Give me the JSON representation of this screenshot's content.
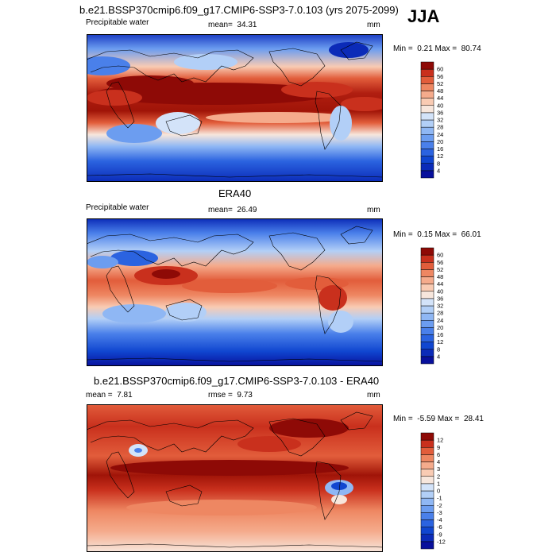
{
  "figure": {
    "season": "JJA"
  },
  "chart_data": [
    {
      "type": "heatmap",
      "title": "b.e21.BSSP370cmip6.f09_g17.CMIP6-SSP3-7.0.103 (yrs 2075-2099)",
      "variable": "Precipitable water",
      "mean_label": "mean=",
      "mean": "34.31",
      "units": "mm",
      "min_label": "Min =",
      "min": "0.21",
      "max_label": "Max =",
      "max": "80.74",
      "colorbar_levels": [
        "4",
        "8",
        "12",
        "16",
        "20",
        "24",
        "28",
        "32",
        "36",
        "40",
        "44",
        "48",
        "52",
        "56",
        "60"
      ],
      "colorbar_colors": [
        "#08109c",
        "#0b2bb8",
        "#1046d0",
        "#2b63e0",
        "#4a80ea",
        "#6c9df0",
        "#8fb7f4",
        "#b2cff7",
        "#d3e3f9",
        "#f7e6dc",
        "#f9cbb3",
        "#f5ab8c",
        "#ee8762",
        "#e25d3b",
        "#c9301d",
        "#8e0a06"
      ]
    },
    {
      "type": "heatmap",
      "title": "ERA40",
      "variable": "Precipitable water",
      "mean_label": "mean=",
      "mean": "26.49",
      "units": "mm",
      "min_label": "Min =",
      "min": "0.15",
      "max_label": "Max =",
      "max": "66.01",
      "colorbar_levels": [
        "4",
        "8",
        "12",
        "16",
        "20",
        "24",
        "28",
        "32",
        "36",
        "40",
        "44",
        "48",
        "52",
        "56",
        "60"
      ],
      "colorbar_colors": [
        "#08109c",
        "#0b2bb8",
        "#1046d0",
        "#2b63e0",
        "#4a80ea",
        "#6c9df0",
        "#8fb7f4",
        "#b2cff7",
        "#d3e3f9",
        "#f7e6dc",
        "#f9cbb3",
        "#f5ab8c",
        "#ee8762",
        "#e25d3b",
        "#c9301d",
        "#8e0a06"
      ]
    },
    {
      "type": "heatmap",
      "title": "b.e21.BSSP370cmip6.f09_g17.CMIP6-SSP3-7.0.103 - ERA40",
      "mean_label": "mean =",
      "mean": "7.81",
      "rmse_label": "rmse =",
      "rmse": "9.73",
      "units": "mm",
      "min_label": "Min =",
      "min": "-5.59",
      "max_label": "Max =",
      "max": "28.41",
      "colorbar_levels": [
        "-12",
        "-9",
        "-6",
        "-4",
        "-3",
        "-2",
        "-1",
        "0",
        "1",
        "2",
        "3",
        "4",
        "6",
        "9",
        "12"
      ],
      "colorbar_colors": [
        "#08109c",
        "#0b2bb8",
        "#1046d0",
        "#2b63e0",
        "#4a80ea",
        "#6c9df0",
        "#8fb7f4",
        "#b2cff7",
        "#d3e3f9",
        "#f7e6dc",
        "#f9cbb3",
        "#f5ab8c",
        "#ee8762",
        "#e25d3b",
        "#c9301d",
        "#8e0a06"
      ]
    }
  ]
}
